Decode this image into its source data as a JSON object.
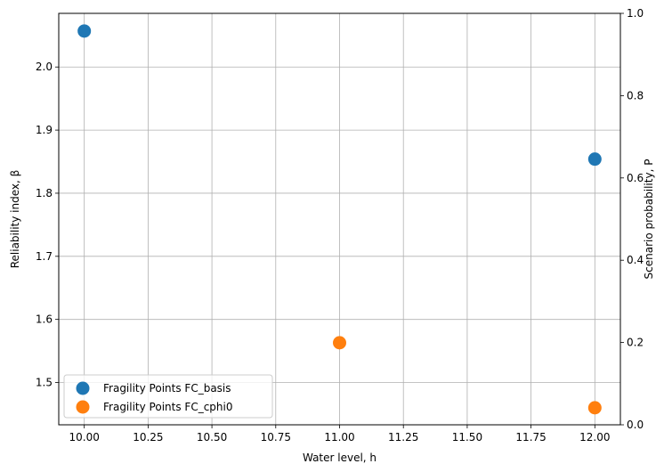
{
  "chart_data": {
    "type": "scatter",
    "title": "",
    "xlabel": "Water level, h",
    "ylabel": "Reliability index, β",
    "y2label": "Scenario probability, P",
    "xlim": [
      9.9,
      12.1
    ],
    "ylim": [
      1.433,
      2.085
    ],
    "y2lim": [
      0,
      1
    ],
    "x_ticks": [
      10.0,
      10.25,
      10.5,
      10.75,
      11.0,
      11.25,
      11.5,
      11.75,
      12.0
    ],
    "x_tick_labels": [
      "10.00",
      "10.25",
      "10.50",
      "10.75",
      "11.00",
      "11.25",
      "11.50",
      "11.75",
      "12.00"
    ],
    "y_ticks": [
      1.5,
      1.6,
      1.7,
      1.8,
      1.9,
      2.0
    ],
    "y_tick_labels": [
      "1.5",
      "1.6",
      "1.7",
      "1.8",
      "1.9",
      "2.0"
    ],
    "y2_ticks": [
      0,
      0.2,
      0.4,
      0.6,
      0.8,
      1.0
    ],
    "y2_tick_labels": [
      "0.0",
      "0.2",
      "0.4",
      "0.6",
      "0.8",
      "1.0"
    ],
    "grid": true,
    "legend_position": "lower-left",
    "series": [
      {
        "name": "Fragility Points FC_basis",
        "color": "#1f77b4",
        "points": [
          {
            "x": 10.0,
            "y": 2.057
          },
          {
            "x": 12.0,
            "y": 1.854
          }
        ]
      },
      {
        "name": "Fragility Points FC_cphi0",
        "color": "#ff7f0e",
        "points": [
          {
            "x": 11.0,
            "y": 1.563
          },
          {
            "x": 12.0,
            "y": 1.46
          }
        ]
      }
    ]
  }
}
